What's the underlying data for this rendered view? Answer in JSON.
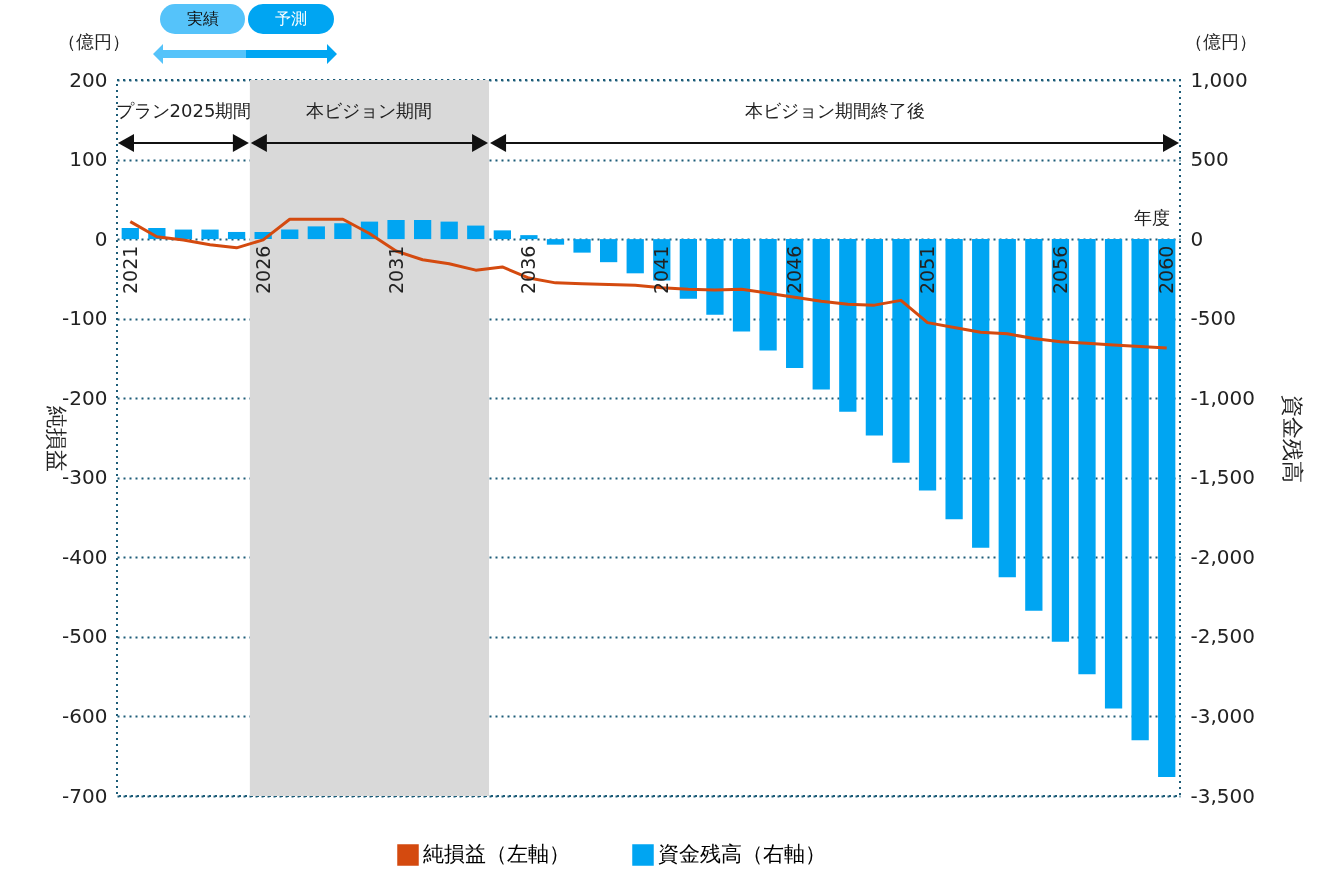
{
  "chart_data": {
    "type": "bar",
    "ylabel": "純損益",
    "y2label": "資金残高",
    "x": [
      2021,
      2022,
      2023,
      2024,
      2025,
      2026,
      2027,
      2028,
      2029,
      2030,
      2031,
      2032,
      2033,
      2034,
      2035,
      2036,
      2037,
      2038,
      2039,
      2040,
      2041,
      2042,
      2043,
      2044,
      2045,
      2046,
      2047,
      2048,
      2049,
      2050,
      2051,
      2052,
      2053,
      2054,
      2055,
      2056,
      2057,
      2058,
      2059,
      2060
    ],
    "xlim": [
      2020.5,
      2060.5
    ],
    "xticks": [
      2021,
      2026,
      2031,
      2036,
      2041,
      2046,
      2051,
      2056,
      2060
    ],
    "ylim": [
      -700,
      200
    ],
    "yticks": [
      -700,
      -600,
      -500,
      -400,
      -300,
      -200,
      -100,
      0,
      100,
      200
    ],
    "y2lim": [
      -3500,
      1000
    ],
    "y2ticks": [
      {
        "value": -3500,
        "label": "-3,500"
      },
      {
        "value": -3000,
        "label": "-3,000"
      },
      {
        "value": -2500,
        "label": "-2,500"
      },
      {
        "value": -2000,
        "label": "-2,000"
      },
      {
        "value": -1500,
        "label": "-1,500"
      },
      {
        "value": -1000,
        "label": "-1,000"
      },
      -500,
      0,
      500,
      {
        "value": 1000,
        "label": "1,000"
      }
    ],
    "series": [
      {
        "name": "純損益（左軸）",
        "type": "line",
        "color": "#d44a0f",
        "values": [
          22,
          3,
          -1,
          -7,
          -11,
          -1,
          25,
          25,
          25,
          7,
          -15,
          -26,
          -31,
          -39,
          -35,
          -49,
          -55,
          -56,
          -57,
          -58,
          -61,
          -63,
          -64,
          -63,
          -68,
          -73,
          -78,
          -82,
          -83,
          -77,
          -105,
          -111,
          -117,
          -119,
          -125,
          -129,
          -131,
          -133,
          -135,
          -137
        ]
      },
      {
        "name": "資金残高（右軸）",
        "axis": "y2",
        "color": "#00a5f2",
        "values": [
          70,
          70,
          60,
          60,
          45,
          45,
          60,
          80,
          100,
          110,
          120,
          120,
          110,
          85,
          55,
          25,
          -35,
          -85,
          -145,
          -215,
          -260,
          -375,
          -475,
          -580,
          -700,
          -810,
          -945,
          -1085,
          -1235,
          -1405,
          -1580,
          -1760,
          -1940,
          -2125,
          -2335,
          -2530,
          -2735,
          -2950,
          -3150,
          -3380
        ]
      }
    ],
    "bands": [
      {
        "axis": "x",
        "from": 2025.5,
        "to": 2034.5,
        "color": "#d9d9d9"
      }
    ],
    "annotations": [
      "（億円）",
      "（億円）",
      "実績",
      "予測",
      "プラン2025期間",
      "本ビジョン期間",
      "本ビジョン期間終了後",
      "年度"
    ],
    "grid": "y",
    "legend": "bottom",
    "marker": "none",
    "line_style": "solid"
  }
}
